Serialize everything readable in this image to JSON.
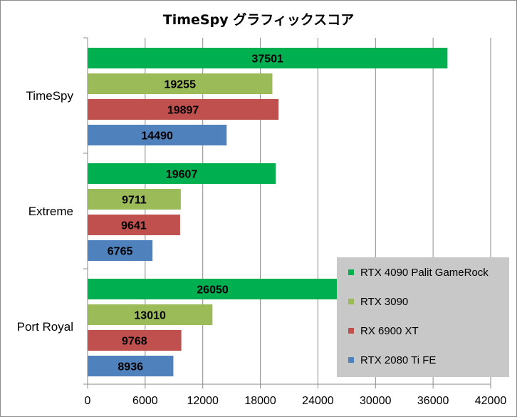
{
  "chart_data": {
    "type": "bar",
    "orientation": "horizontal",
    "title": "TimeSpy グラフィックスコア",
    "categories": [
      "TimeSpy",
      "Extreme",
      "Port Royal"
    ],
    "series": [
      {
        "name": "RTX 4090 Palit GameRock",
        "color": "#00b050",
        "values": [
          37501,
          19607,
          26050
        ]
      },
      {
        "name": "RTX 3090",
        "color": "#9bbb59",
        "values": [
          19255,
          9711,
          13010
        ]
      },
      {
        "name": "RX 6900 XT",
        "color": "#c0504d",
        "values": [
          19897,
          9641,
          9768
        ]
      },
      {
        "name": "RTX 2080 Ti FE",
        "color": "#4f81bd",
        "values": [
          14490,
          6765,
          8936
        ]
      }
    ],
    "xlim": [
      0,
      42000
    ],
    "xticks": [
      0,
      6000,
      12000,
      18000,
      24000,
      30000,
      36000,
      42000
    ],
    "xlabel": "",
    "ylabel": "",
    "grid": "vertical major gridlines",
    "legend_position": "bottom-right",
    "legend_background": "#c8c8c8"
  }
}
